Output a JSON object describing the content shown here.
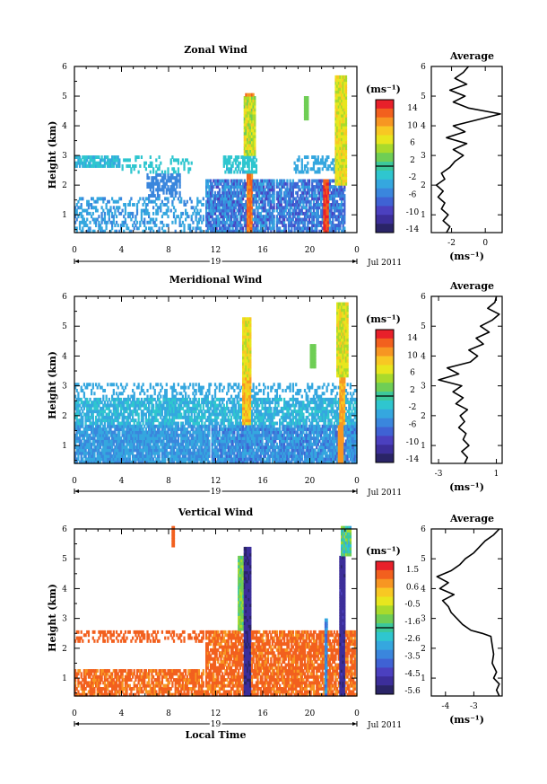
{
  "chart_data": [
    {
      "type": "heatmap",
      "title": "Zonal Wind",
      "ylabel": "Height (km)",
      "xlim": [
        0,
        24
      ],
      "ylim": [
        0.4,
        6
      ],
      "x_ticks": [
        "0",
        "4",
        "8",
        "12",
        "16",
        "20",
        "0"
      ],
      "y_ticks": [
        "1",
        "2",
        "3",
        "4",
        "5",
        "6"
      ],
      "date_label": "19",
      "month_label": "Jul 2011",
      "colorbar": {
        "unit": "(ms⁻¹)",
        "ticks": [
          "14",
          "10",
          "6",
          "2",
          "-2",
          "-6",
          "-10",
          "-14"
        ],
        "colors": [
          "#e8202a",
          "#f2601e",
          "#f79622",
          "#f8c823",
          "#e8e61e",
          "#a9da2c",
          "#6fce55",
          "#3cc89a",
          "#2fc6cf",
          "#35a7df",
          "#3a86dd",
          "#3f62d4",
          "#4b40bf",
          "#3c2e9a",
          "#2a2467"
        ]
      },
      "profile": {
        "title": "Average",
        "x_ticks": [
          "-2",
          "0"
        ],
        "xlabel": "(ms⁻¹)",
        "xlim": [
          -3.2,
          1.0
        ],
        "y_ticks": [
          "1",
          "2",
          "3",
          "4",
          "5",
          "6"
        ],
        "points": [
          [
            -2.3,
            0.4
          ],
          [
            -2.1,
            0.6
          ],
          [
            -2.5,
            0.8
          ],
          [
            -2.2,
            1.0
          ],
          [
            -2.6,
            1.2
          ],
          [
            -2.4,
            1.4
          ],
          [
            -2.8,
            1.6
          ],
          [
            -2.5,
            1.8
          ],
          [
            -2.9,
            2.0
          ],
          [
            -2.4,
            2.2
          ],
          [
            -2.6,
            2.4
          ],
          [
            -2.1,
            2.6
          ],
          [
            -1.8,
            2.8
          ],
          [
            -1.3,
            3.0
          ],
          [
            -1.9,
            3.2
          ],
          [
            -1.1,
            3.4
          ],
          [
            -2.3,
            3.6
          ],
          [
            -1.2,
            3.8
          ],
          [
            -1.9,
            4.0
          ],
          [
            -0.5,
            4.2
          ],
          [
            0.9,
            4.4
          ],
          [
            -1.0,
            4.6
          ],
          [
            -1.9,
            4.8
          ],
          [
            -1.2,
            5.0
          ],
          [
            -2.1,
            5.2
          ],
          [
            -1.1,
            5.4
          ],
          [
            -1.8,
            5.6
          ],
          [
            -1.3,
            5.8
          ],
          [
            -1.0,
            6.0
          ]
        ]
      }
    },
    {
      "type": "heatmap",
      "title": "Meridional Wind",
      "ylabel": "Height (km)",
      "xlim": [
        0,
        24
      ],
      "ylim": [
        0.4,
        6
      ],
      "x_ticks": [
        "0",
        "4",
        "8",
        "12",
        "16",
        "20",
        "0"
      ],
      "y_ticks": [
        "1",
        "2",
        "3",
        "4",
        "5",
        "6"
      ],
      "date_label": "19",
      "month_label": "Jul 2011",
      "colorbar": {
        "unit": "(ms⁻¹)",
        "ticks": [
          "14",
          "10",
          "6",
          "2",
          "-2",
          "-6",
          "-10",
          "-14"
        ],
        "colors": [
          "#e8202a",
          "#f2601e",
          "#f79622",
          "#f8c823",
          "#e8e61e",
          "#a9da2c",
          "#6fce55",
          "#3cc89a",
          "#2fc6cf",
          "#35a7df",
          "#3a86dd",
          "#3f62d4",
          "#4b40bf",
          "#3c2e9a",
          "#2a2467"
        ]
      },
      "profile": {
        "title": "Average",
        "x_ticks": [
          "-3",
          "1"
        ],
        "xlabel": "(ms⁻¹)",
        "xlim": [
          -3.5,
          1.4
        ],
        "y_ticks": [
          "1",
          "2",
          "3",
          "4",
          "5",
          "6"
        ],
        "points": [
          [
            -1.2,
            0.4
          ],
          [
            -1.0,
            0.6
          ],
          [
            -1.4,
            0.8
          ],
          [
            -0.9,
            1.0
          ],
          [
            -1.3,
            1.2
          ],
          [
            -1.1,
            1.4
          ],
          [
            -1.6,
            1.6
          ],
          [
            -1.2,
            1.8
          ],
          [
            -1.5,
            2.0
          ],
          [
            -1.0,
            2.2
          ],
          [
            -1.8,
            2.4
          ],
          [
            -1.3,
            2.6
          ],
          [
            -2.0,
            2.8
          ],
          [
            -1.4,
            3.0
          ],
          [
            -3.0,
            3.2
          ],
          [
            -1.6,
            3.4
          ],
          [
            -2.4,
            3.6
          ],
          [
            -0.8,
            3.8
          ],
          [
            -0.3,
            4.0
          ],
          [
            -0.9,
            4.2
          ],
          [
            0.1,
            4.4
          ],
          [
            -0.4,
            4.6
          ],
          [
            0.5,
            4.8
          ],
          [
            -0.1,
            5.0
          ],
          [
            0.7,
            5.2
          ],
          [
            1.2,
            5.4
          ],
          [
            0.4,
            5.6
          ],
          [
            0.9,
            5.8
          ],
          [
            1.0,
            6.0
          ]
        ]
      }
    },
    {
      "type": "heatmap",
      "title": "Vertical Wind",
      "ylabel": "Height (km)",
      "xlabel": "Local Time",
      "xlim": [
        0,
        24
      ],
      "ylim": [
        0.4,
        6
      ],
      "x_ticks": [
        "0",
        "4",
        "8",
        "12",
        "16",
        "20",
        "0"
      ],
      "y_ticks": [
        "1",
        "2",
        "3",
        "4",
        "5",
        "6"
      ],
      "date_label": "19",
      "month_label": "Jul 2011",
      "colorbar": {
        "unit": "(ms⁻¹)",
        "ticks": [
          "1.5",
          "0.6",
          "-0.5",
          "-1.6",
          "-2.6",
          "-3.5",
          "-4.5",
          "-5.6"
        ],
        "colors": [
          "#e8202a",
          "#f2601e",
          "#f79622",
          "#f8c823",
          "#e8e61e",
          "#a9da2c",
          "#6fce55",
          "#3cc89a",
          "#2fc6cf",
          "#35a7df",
          "#3a86dd",
          "#3f62d4",
          "#4b40bf",
          "#3c2e9a",
          "#2a2467"
        ]
      },
      "profile": {
        "title": "Average",
        "x_ticks": [
          "-4",
          "-3"
        ],
        "xlabel": "(ms⁻¹)",
        "xlim": [
          -4.5,
          -2.0
        ],
        "y_ticks": [
          "1",
          "2",
          "3",
          "4",
          "5",
          "6"
        ],
        "points": [
          [
            -2.1,
            0.4
          ],
          [
            -2.2,
            0.6
          ],
          [
            -2.1,
            0.8
          ],
          [
            -2.3,
            1.0
          ],
          [
            -2.2,
            1.2
          ],
          [
            -2.35,
            1.5
          ],
          [
            -2.3,
            1.8
          ],
          [
            -2.35,
            2.1
          ],
          [
            -2.4,
            2.4
          ],
          [
            -2.7,
            2.5
          ],
          [
            -3.1,
            2.6
          ],
          [
            -3.4,
            2.8
          ],
          [
            -3.6,
            3.0
          ],
          [
            -3.8,
            3.2
          ],
          [
            -3.9,
            3.4
          ],
          [
            -4.1,
            3.6
          ],
          [
            -3.7,
            3.8
          ],
          [
            -4.2,
            4.0
          ],
          [
            -3.9,
            4.2
          ],
          [
            -4.3,
            4.4
          ],
          [
            -3.8,
            4.6
          ],
          [
            -3.5,
            4.8
          ],
          [
            -3.3,
            5.0
          ],
          [
            -3.0,
            5.2
          ],
          [
            -2.8,
            5.4
          ],
          [
            -2.6,
            5.6
          ],
          [
            -2.3,
            5.8
          ],
          [
            -2.1,
            6.0
          ]
        ]
      }
    }
  ]
}
